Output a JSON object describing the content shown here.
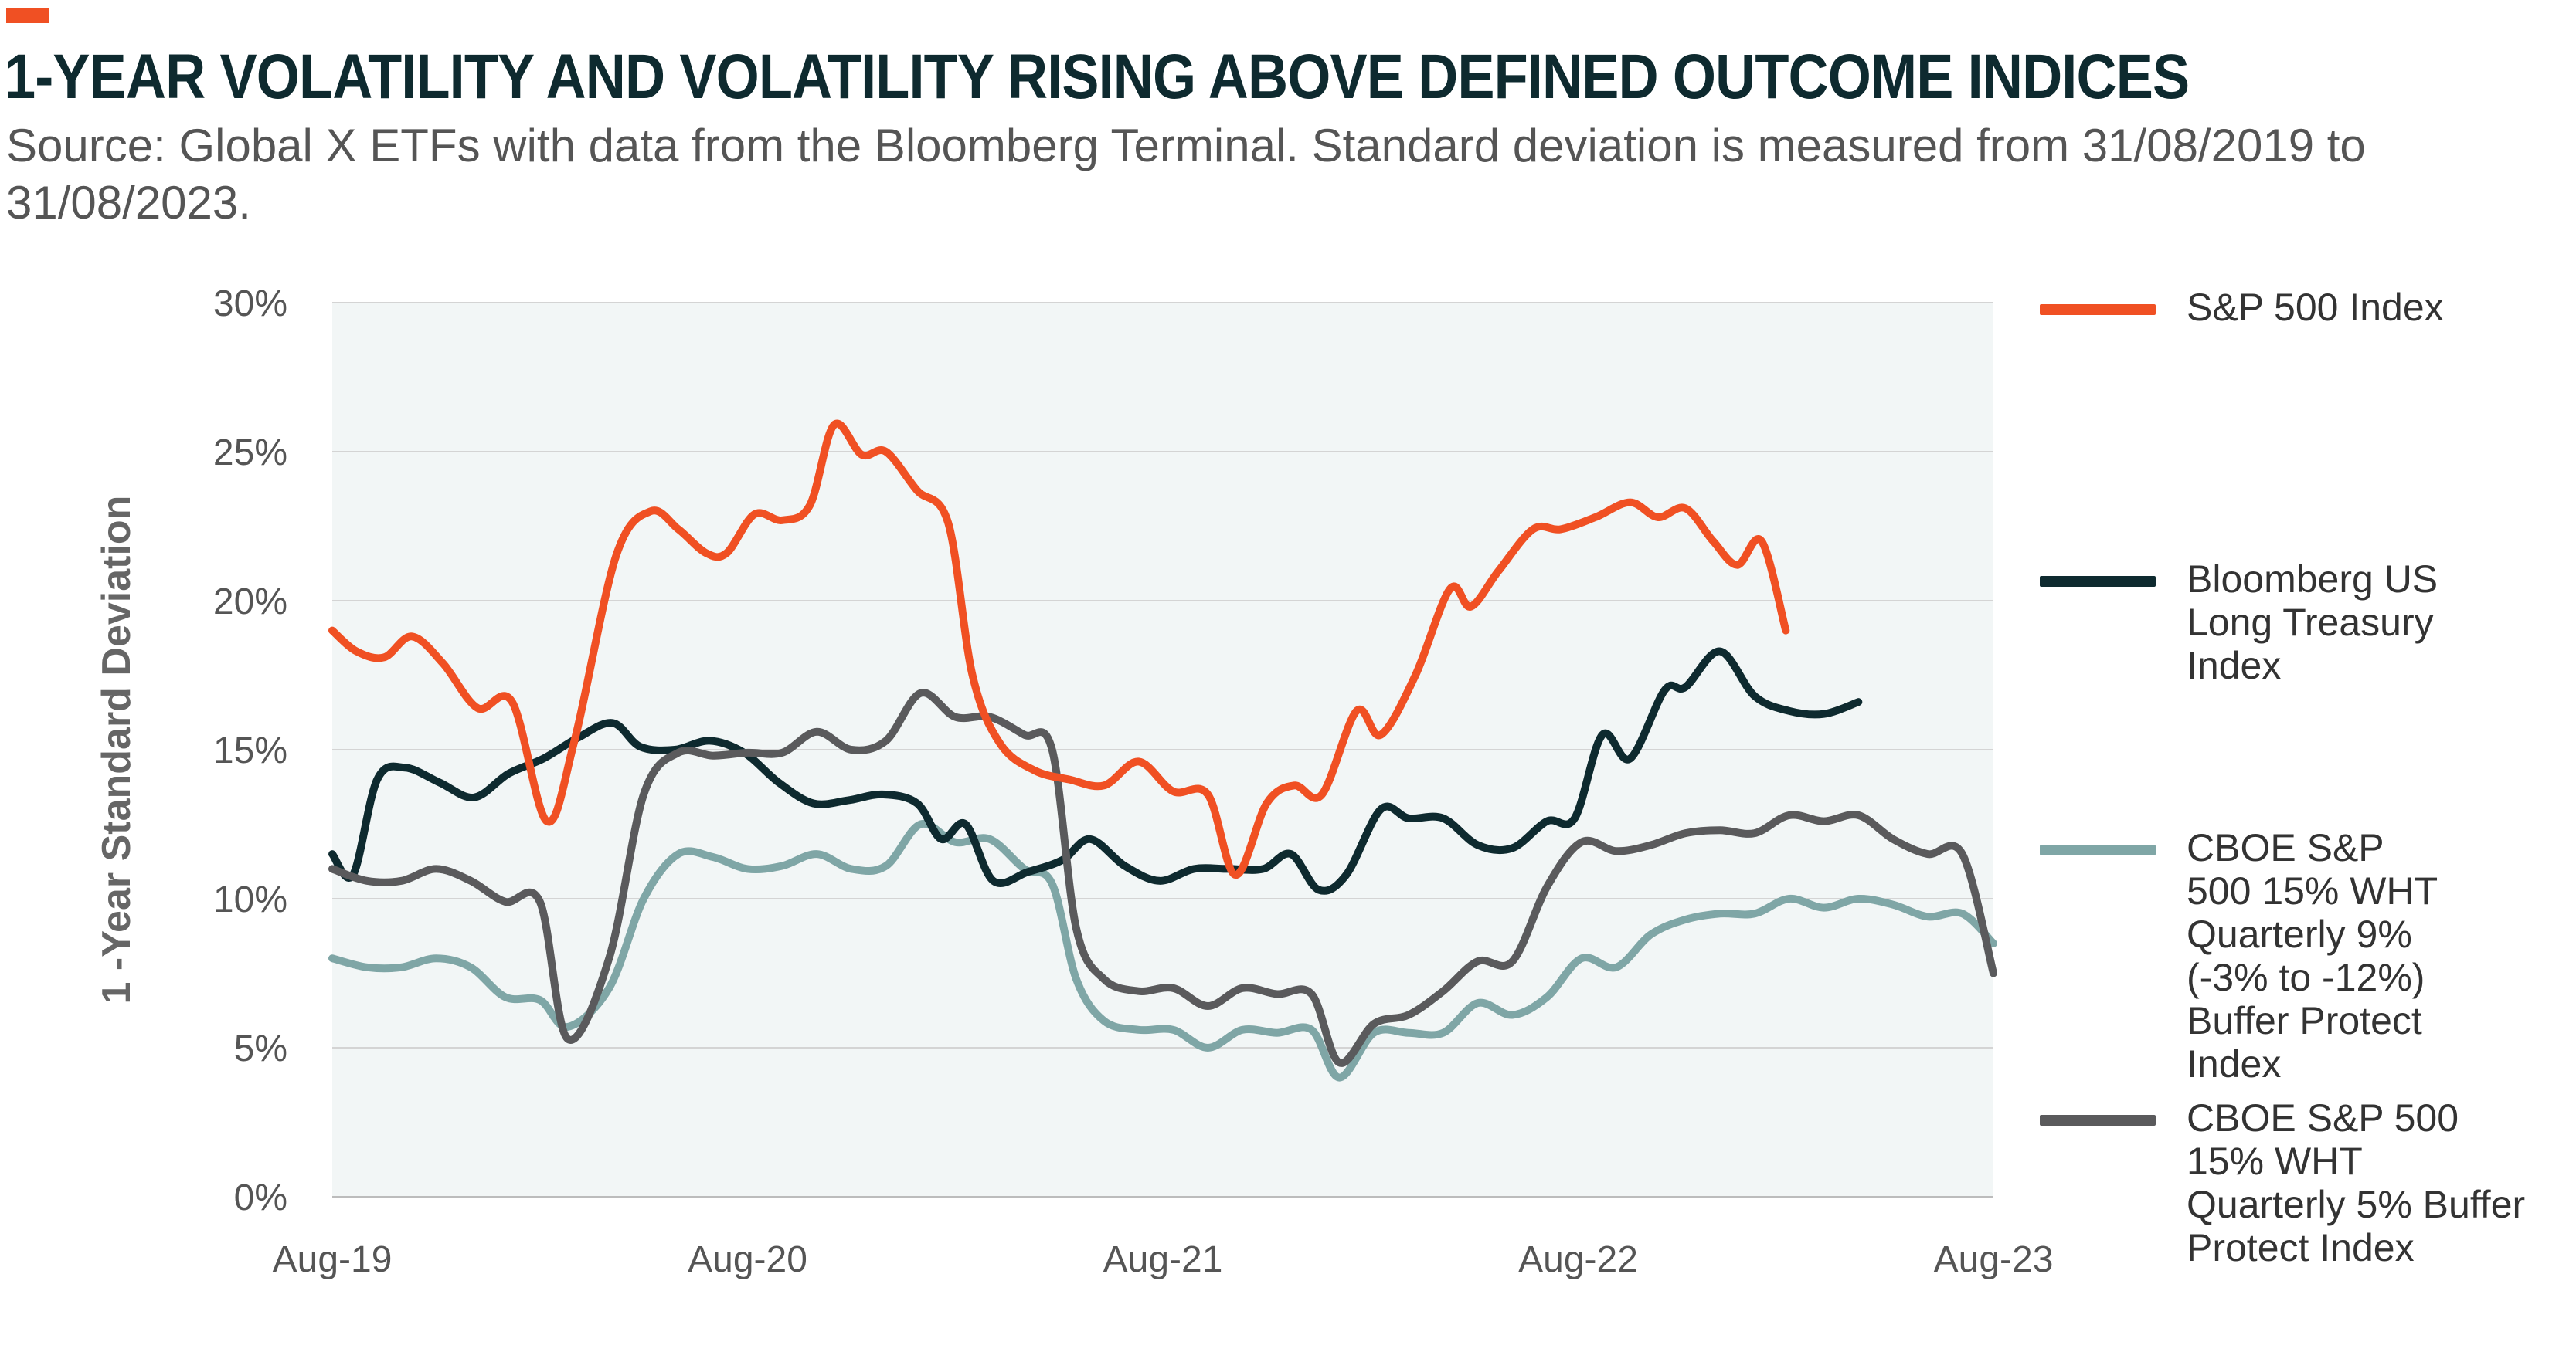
{
  "header": {
    "accent_color": "#f05023",
    "title": "1-YEAR VOLATILITY AND VOLATILITY RISING ABOVE DEFINED OUTCOME INDICES",
    "subtitle": "Source: Global X ETFs with data from the Bloomberg Terminal. Standard deviation is measured from 31/08/2019 to 31/08/2023."
  },
  "chart_data": {
    "type": "line",
    "title": "1-YEAR VOLATILITY AND VOLATILITY RISING ABOVE DEFINED OUTCOME INDICES",
    "xlabel": "",
    "ylabel": "1 -Year Standard Deviation",
    "ylim": [
      0,
      30
    ],
    "yticks": [
      "0%",
      "5%",
      "10%",
      "15%",
      "20%",
      "25%",
      "30%"
    ],
    "xlim": [
      0,
      48
    ],
    "xticks": [
      {
        "label": "Aug-19",
        "x": 0
      },
      {
        "label": "Aug-20",
        "x": 12
      },
      {
        "label": "Aug-21",
        "x": 24
      },
      {
        "label": "Aug-22",
        "x": 36
      },
      {
        "label": "Aug-23",
        "x": 48
      }
    ],
    "grid": "horizontal",
    "legend_position": "right",
    "series": [
      {
        "name": "S&P 500 Index",
        "color": "#f05023",
        "points": [
          [
            0,
            19
          ],
          [
            0.7,
            18.3
          ],
          [
            1.5,
            18.1
          ],
          [
            2.3,
            18.8
          ],
          [
            3.2,
            17.9
          ],
          [
            4.2,
            16.4
          ],
          [
            5.2,
            16.6
          ],
          [
            6.2,
            12.6
          ],
          [
            7,
            15.3
          ],
          [
            8.2,
            21.5
          ],
          [
            9.2,
            23.0
          ],
          [
            10,
            22.4
          ],
          [
            10.8,
            21.6
          ],
          [
            11.4,
            21.6
          ],
          [
            12.2,
            22.9
          ],
          [
            13,
            22.7
          ],
          [
            13.8,
            23.2
          ],
          [
            14.5,
            25.9
          ],
          [
            15.3,
            24.9
          ],
          [
            16,
            25.0
          ],
          [
            16.9,
            23.7
          ],
          [
            17.8,
            22.6
          ],
          [
            18.5,
            17.5
          ],
          [
            19.3,
            15.2
          ],
          [
            20.3,
            14.3
          ],
          [
            21.3,
            14.0
          ],
          [
            22.3,
            13.8
          ],
          [
            23.3,
            14.6
          ],
          [
            24.3,
            13.6
          ],
          [
            25.3,
            13.5
          ],
          [
            26.1,
            10.8
          ],
          [
            27,
            13.2
          ],
          [
            27.8,
            13.8
          ],
          [
            28.6,
            13.5
          ],
          [
            29.6,
            16.3
          ],
          [
            30.3,
            15.5
          ],
          [
            31.3,
            17.5
          ],
          [
            32.3,
            20.4
          ],
          [
            32.9,
            19.8
          ],
          [
            33.7,
            21.0
          ],
          [
            34.7,
            22.4
          ],
          [
            35.5,
            22.4
          ],
          [
            36.5,
            22.8
          ],
          [
            37.5,
            23.3
          ],
          [
            38.3,
            22.8
          ],
          [
            39.1,
            23.1
          ],
          [
            39.9,
            22.0
          ],
          [
            40.6,
            21.2
          ],
          [
            41.3,
            22.0
          ],
          [
            42,
            19.0
          ]
        ]
      },
      {
        "name": "Bloomberg US Long Treasury Index",
        "color": "#0e2a2f",
        "points": [
          [
            0,
            11.5
          ],
          [
            0.6,
            10.8
          ],
          [
            1.3,
            14.0
          ],
          [
            2.1,
            14.4
          ],
          [
            3.1,
            13.9
          ],
          [
            4.1,
            13.4
          ],
          [
            5.1,
            14.2
          ],
          [
            6.1,
            14.7
          ],
          [
            7.1,
            15.4
          ],
          [
            8.1,
            15.9
          ],
          [
            8.9,
            15.1
          ],
          [
            9.9,
            15.0
          ],
          [
            10.9,
            15.3
          ],
          [
            11.9,
            14.9
          ],
          [
            12.9,
            13.9
          ],
          [
            13.9,
            13.2
          ],
          [
            14.9,
            13.3
          ],
          [
            15.9,
            13.5
          ],
          [
            16.9,
            13.2
          ],
          [
            17.6,
            12.0
          ],
          [
            18.3,
            12.5
          ],
          [
            19.1,
            10.6
          ],
          [
            20.1,
            10.9
          ],
          [
            21.1,
            11.3
          ],
          [
            21.9,
            12.0
          ],
          [
            22.9,
            11.1
          ],
          [
            23.9,
            10.6
          ],
          [
            24.9,
            11.0
          ],
          [
            25.9,
            11.0
          ],
          [
            26.9,
            11.0
          ],
          [
            27.7,
            11.5
          ],
          [
            28.5,
            10.3
          ],
          [
            29.3,
            10.8
          ],
          [
            30.3,
            13.0
          ],
          [
            31.1,
            12.7
          ],
          [
            32.1,
            12.7
          ],
          [
            33.1,
            11.8
          ],
          [
            34.1,
            11.7
          ],
          [
            35.1,
            12.6
          ],
          [
            35.9,
            12.7
          ],
          [
            36.7,
            15.5
          ],
          [
            37.5,
            14.7
          ],
          [
            38.5,
            17.0
          ],
          [
            39.1,
            17.1
          ],
          [
            40.1,
            18.3
          ],
          [
            41.1,
            16.8
          ],
          [
            42.1,
            16.3
          ],
          [
            43.1,
            16.2
          ],
          [
            44.1,
            16.6
          ]
        ]
      },
      {
        "name": "CBOE S&P 500 15% WHT Quarterly 9% (-3% to -12%) Buffer Protect Index",
        "color": "#7fa6a6",
        "points": [
          [
            0,
            8.0
          ],
          [
            1,
            7.7
          ],
          [
            2,
            7.7
          ],
          [
            3,
            8.0
          ],
          [
            4,
            7.7
          ],
          [
            5,
            6.7
          ],
          [
            6,
            6.6
          ],
          [
            6.8,
            5.7
          ],
          [
            8,
            7.0
          ],
          [
            9,
            10.0
          ],
          [
            10,
            11.5
          ],
          [
            11,
            11.4
          ],
          [
            12,
            11.0
          ],
          [
            13,
            11.1
          ],
          [
            14,
            11.5
          ],
          [
            15,
            11.0
          ],
          [
            16,
            11.1
          ],
          [
            17,
            12.5
          ],
          [
            18,
            11.9
          ],
          [
            19,
            12.0
          ],
          [
            20,
            11.0
          ],
          [
            20.8,
            10.5
          ],
          [
            21.5,
            7.3
          ],
          [
            22.3,
            5.9
          ],
          [
            23.3,
            5.6
          ],
          [
            24.3,
            5.6
          ],
          [
            25.3,
            5.0
          ],
          [
            26.3,
            5.6
          ],
          [
            27.3,
            5.5
          ],
          [
            28.3,
            5.6
          ],
          [
            29.1,
            4.0
          ],
          [
            30.1,
            5.5
          ],
          [
            31.1,
            5.5
          ],
          [
            32.1,
            5.5
          ],
          [
            33.1,
            6.5
          ],
          [
            34.1,
            6.1
          ],
          [
            35.1,
            6.7
          ],
          [
            36.1,
            8.0
          ],
          [
            37.1,
            7.7
          ],
          [
            38.1,
            8.8
          ],
          [
            39.1,
            9.3
          ],
          [
            40.1,
            9.5
          ],
          [
            41.1,
            9.5
          ],
          [
            42.1,
            10.0
          ],
          [
            43.1,
            9.7
          ],
          [
            44.1,
            10.0
          ],
          [
            45.1,
            9.8
          ],
          [
            46.1,
            9.4
          ],
          [
            47.1,
            9.5
          ],
          [
            48,
            8.5
          ]
        ]
      },
      {
        "name": "CBOE S&P 500 15% WHT Quarterly 5% Buffer Protect Index",
        "color": "#5a5a5c",
        "points": [
          [
            0,
            11.0
          ],
          [
            1,
            10.6
          ],
          [
            2,
            10.6
          ],
          [
            3,
            11.0
          ],
          [
            4,
            10.6
          ],
          [
            5,
            9.9
          ],
          [
            6,
            9.9
          ],
          [
            6.8,
            5.3
          ],
          [
            8,
            8.0
          ],
          [
            9,
            13.5
          ],
          [
            10,
            14.9
          ],
          [
            11,
            14.8
          ],
          [
            12,
            14.9
          ],
          [
            13,
            14.9
          ],
          [
            14,
            15.6
          ],
          [
            15,
            15.0
          ],
          [
            16,
            15.3
          ],
          [
            17,
            16.9
          ],
          [
            18,
            16.1
          ],
          [
            19,
            16.1
          ],
          [
            20,
            15.5
          ],
          [
            20.8,
            15.0
          ],
          [
            21.5,
            9.0
          ],
          [
            22.3,
            7.3
          ],
          [
            23.3,
            6.9
          ],
          [
            24.3,
            7.0
          ],
          [
            25.3,
            6.4
          ],
          [
            26.3,
            7.0
          ],
          [
            27.3,
            6.8
          ],
          [
            28.3,
            6.8
          ],
          [
            29.1,
            4.5
          ],
          [
            30.1,
            5.8
          ],
          [
            31.1,
            6.1
          ],
          [
            32.1,
            6.9
          ],
          [
            33.1,
            7.9
          ],
          [
            34.1,
            7.9
          ],
          [
            35.1,
            10.4
          ],
          [
            36.1,
            11.9
          ],
          [
            37.1,
            11.6
          ],
          [
            38.1,
            11.8
          ],
          [
            39.1,
            12.2
          ],
          [
            40.1,
            12.3
          ],
          [
            41.1,
            12.2
          ],
          [
            42.1,
            12.8
          ],
          [
            43.1,
            12.6
          ],
          [
            44.1,
            12.8
          ],
          [
            45.1,
            12.0
          ],
          [
            46.1,
            11.5
          ],
          [
            47.1,
            11.5
          ],
          [
            48,
            7.5
          ]
        ]
      }
    ],
    "legend": [
      {
        "label": "S&P 500 Index",
        "color": "#f05023"
      },
      {
        "label": "Bloomberg US Long Treasury Index",
        "color": "#0e2a2f"
      },
      {
        "label": "CBOE S&P 500 15% WHT Quarterly 9% (-3% to -12%) Buffer Protect Index",
        "color": "#7fa6a6"
      },
      {
        "label": "CBOE S&P 500 15% WHT Quarterly 5% Buffer Protect Index",
        "color": "#5a5a5c"
      }
    ]
  }
}
